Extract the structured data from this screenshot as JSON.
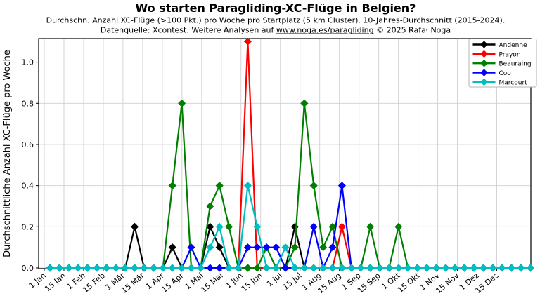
{
  "header": {
    "title": "Wo starten Paragliding-XC-Flüge in Belgien?",
    "subtitle": "Durchschn. Anzahl XC-Flüge (>100 Pkt.) pro Woche pro Startplatz (5 km Cluster). 10-Jahres-Durchschnitt (2015-2024).",
    "source_prefix": "Datenquelle: Xcontest. Weitere Analysen auf ",
    "source_link": "www.noga.es/paragliding",
    "source_suffix": " © 2025 Rafał Noga"
  },
  "chart_data": {
    "type": "line",
    "title": "Wo starten Paragliding-XC-Flüge in Belgien?",
    "xlabel": "",
    "ylabel": "Durchschnittliche Anzahl XC-Flüge pro Woche",
    "n_points": 52,
    "x_unit": "Kalenderwoche (wöchentliche Punkte)",
    "x_tick_labels": [
      "1 Jan",
      "15 Jan",
      "1 Feb",
      "15 Feb",
      "1 Mär",
      "15 Mär",
      "1 Apr",
      "15 Apr",
      "1 Mai",
      "15 Mai",
      "1 Jun",
      "15 Jun",
      "1 Jul",
      "15 Jul",
      "1 Aug",
      "15 Aug",
      "1 Sep",
      "15 Sep",
      "1 Okt",
      "15 Okt",
      "1 Nov",
      "15 Nov",
      "1 Dez",
      "15 Dez"
    ],
    "y_ticks": [
      0.0,
      0.2,
      0.4,
      0.6,
      0.8,
      1.0
    ],
    "y_tick_labels": [
      "0.0",
      "0.2",
      "0.4",
      "0.6",
      "0.8",
      "1.0"
    ],
    "ylim": [
      0,
      1.12
    ],
    "grid": true,
    "legend_position": "upper right",
    "marker": "diamond",
    "series": [
      {
        "name": "Andenne",
        "color": "#000000",
        "values": [
          0,
          0,
          0,
          0,
          0,
          0,
          0,
          0,
          0,
          0.2,
          0,
          0,
          0,
          0.1,
          0,
          0,
          0,
          0.2,
          0.1,
          0,
          0,
          0,
          0,
          0,
          0,
          0,
          0.2,
          0,
          0,
          0,
          0,
          0,
          0,
          0,
          0,
          0,
          0,
          0,
          0,
          0,
          0,
          0,
          0,
          0,
          0,
          0,
          0,
          0,
          0,
          0,
          0,
          0
        ]
      },
      {
        "name": "Prayon",
        "color": "#ff0000",
        "values": [
          0,
          0,
          0,
          0,
          0,
          0,
          0,
          0,
          0,
          0,
          0,
          0,
          0,
          0,
          0,
          0,
          0,
          0,
          0,
          0,
          0,
          1.1,
          0,
          0,
          0,
          0,
          0,
          0,
          0,
          0,
          0,
          0.2,
          0,
          0,
          0,
          0,
          0,
          0,
          0,
          0,
          0,
          0,
          0,
          0,
          0,
          0,
          0,
          0,
          0,
          0,
          0,
          0
        ]
      },
      {
        "name": "Beauraing",
        "color": "#008000",
        "values": [
          0,
          0,
          0,
          0,
          0,
          0,
          0,
          0,
          0,
          0,
          0,
          0,
          0,
          0.4,
          0.8,
          0,
          0,
          0.3,
          0.4,
          0.2,
          0,
          0,
          0,
          0.1,
          0,
          0,
          0.1,
          0.8,
          0.4,
          0.1,
          0.2,
          0,
          0,
          0,
          0.2,
          0,
          0,
          0.2,
          0,
          0,
          0,
          0,
          0,
          0,
          0,
          0,
          0,
          0,
          0,
          0,
          0,
          0
        ]
      },
      {
        "name": "Coo",
        "color": "#0000ff",
        "values": [
          0,
          0,
          0,
          0,
          0,
          0,
          0,
          0,
          0,
          0,
          0,
          0,
          0,
          0,
          0,
          0.1,
          0,
          0,
          0,
          0,
          0,
          0.1,
          0.1,
          0.1,
          0.1,
          0,
          0,
          0,
          0.2,
          0,
          0.1,
          0.4,
          0,
          0,
          0,
          0,
          0,
          0,
          0,
          0,
          0,
          0,
          0,
          0,
          0,
          0,
          0,
          0,
          0,
          0,
          0,
          0
        ]
      },
      {
        "name": "Marcourt",
        "color": "#00bfbf",
        "values": [
          0,
          0,
          0,
          0,
          0,
          0,
          0,
          0,
          0,
          0,
          0,
          0,
          0,
          0,
          0,
          0,
          0,
          0.1,
          0.2,
          0,
          0,
          0.4,
          0.2,
          0,
          0,
          0.1,
          0,
          0,
          0,
          0,
          0,
          0,
          0,
          0,
          0,
          0,
          0,
          0,
          0,
          0,
          0,
          0,
          0,
          0,
          0,
          0,
          0,
          0,
          0,
          0,
          0,
          0
        ]
      }
    ]
  }
}
